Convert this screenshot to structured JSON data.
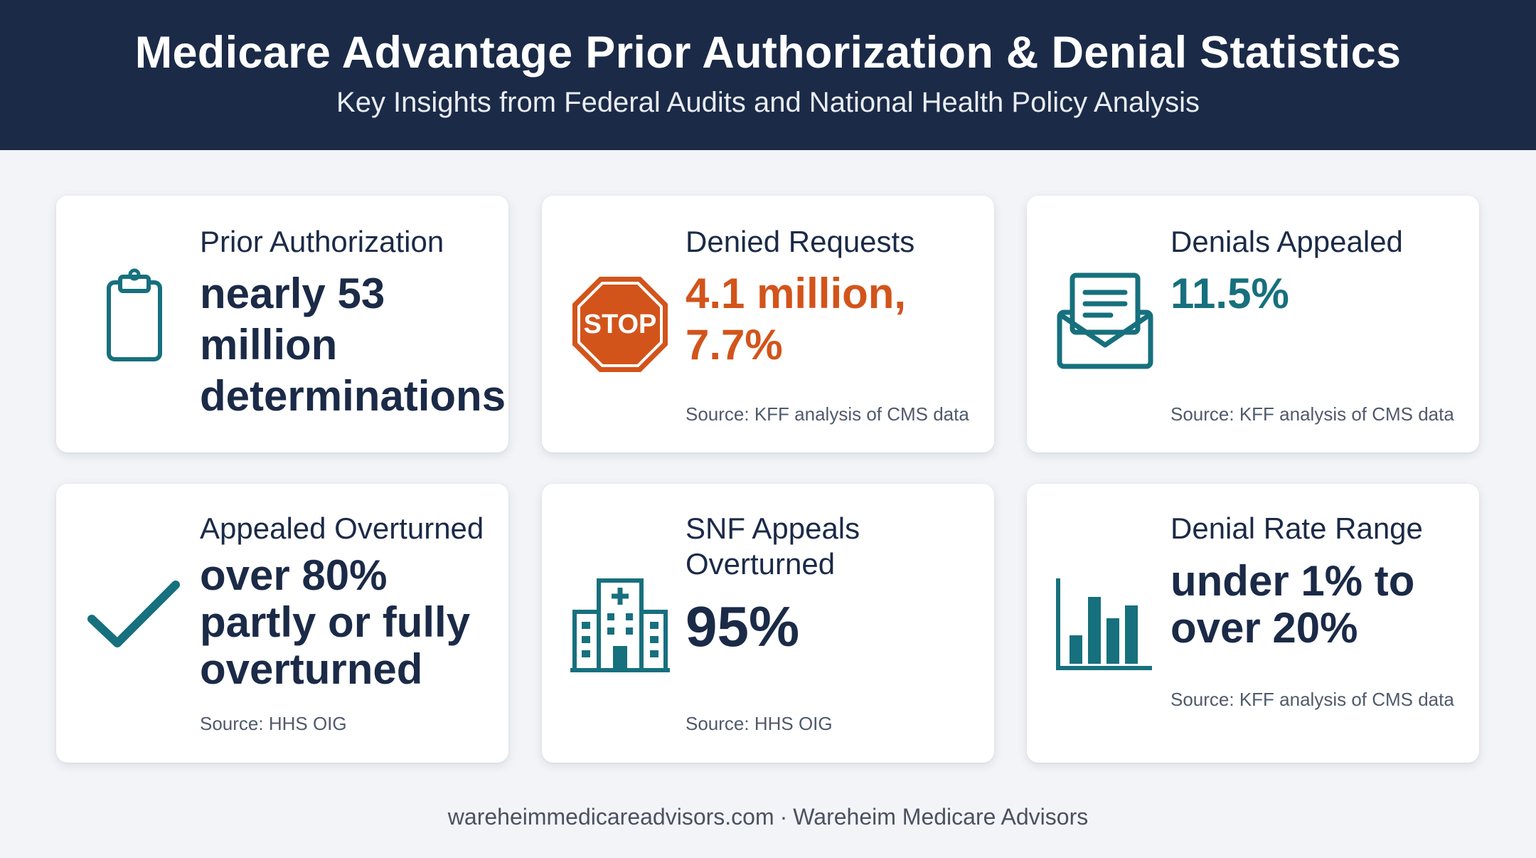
{
  "header": {
    "title": "Medicare Advantage Prior Authorization & Denial Statistics",
    "subtitle": "Key Insights from Federal Audits and National Health Policy Analysis"
  },
  "cards": [
    {
      "label": "Prior Authorization",
      "value": "nearly 53 million determinations",
      "source": "",
      "icon": "clipboard-icon",
      "value_color": "#1b2a47"
    },
    {
      "label": "Denied Requests",
      "value": "4.1 million, 7.7%",
      "source": "Source: KFF analysis of CMS data",
      "icon": "stop-sign-icon",
      "icon_text": "STOP",
      "value_color": "#d2541b"
    },
    {
      "label": "Denials Appealed",
      "value": "11.5%",
      "source": "Source: KFF analysis of CMS data",
      "icon": "envelope-icon",
      "value_color": "#17707d"
    },
    {
      "label": "Appealed Overturned",
      "value": "over 80% partly or fully overturned",
      "source": "Source: HHS OIG",
      "icon": "checkmark-icon",
      "value_color": "#1b2a47"
    },
    {
      "label": "SNF Appeals Overturned",
      "value": "95%",
      "source": "Source: HHS OIG",
      "icon": "hospital-icon",
      "value_color": "#1b2a47"
    },
    {
      "label": "Denial Rate Range",
      "value": "under 1% to over 20%",
      "source": "Source: KFF analysis of CMS data",
      "icon": "bar-chart-icon",
      "value_color": "#1b2a47"
    }
  ],
  "footer": {
    "website": "wareheimmedicareadvisors.com",
    "separator": "·",
    "company": "Wareheim Medicare Advisors"
  },
  "colors": {
    "header_bg": "#1b2a47",
    "accent_teal": "#17707d",
    "accent_orange": "#d2541b",
    "page_bg": "#f2f4f7"
  }
}
